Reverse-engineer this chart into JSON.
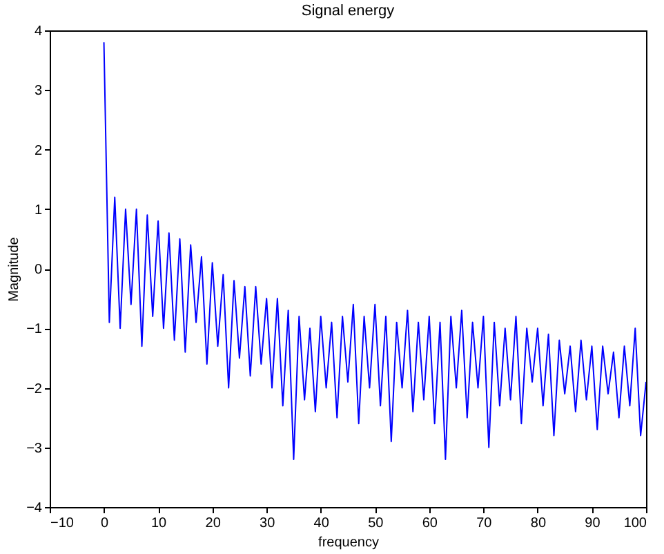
{
  "chart_data": {
    "type": "line",
    "title": "Signal energy",
    "xlabel": "frequency",
    "ylabel": "Magnitude",
    "x": [
      0,
      1,
      2,
      3,
      4,
      5,
      6,
      7,
      8,
      9,
      10,
      11,
      12,
      13,
      14,
      15,
      16,
      17,
      18,
      19,
      20,
      21,
      22,
      23,
      24,
      25,
      26,
      27,
      28,
      29,
      30,
      31,
      32,
      33,
      34,
      35,
      36,
      37,
      38,
      39,
      40,
      41,
      42,
      43,
      44,
      45,
      46,
      47,
      48,
      49,
      50,
      51,
      52,
      53,
      54,
      55,
      56,
      57,
      58,
      59,
      60,
      61,
      62,
      63,
      64,
      65,
      66,
      67,
      68,
      69,
      70,
      71,
      72,
      73,
      74,
      75,
      76,
      77,
      78,
      79,
      80,
      81,
      82,
      83,
      84,
      85,
      86,
      87,
      88,
      89,
      90,
      91,
      92,
      93,
      94,
      95,
      96,
      97,
      98,
      99,
      100
    ],
    "series": [
      {
        "color": "#0000ff",
        "values": [
          3.8,
          -0.9,
          1.2,
          -1.0,
          1.0,
          -0.6,
          1.0,
          -1.3,
          0.9,
          -0.8,
          0.8,
          -1.0,
          0.6,
          -1.2,
          0.5,
          -1.4,
          0.4,
          -0.9,
          0.2,
          -1.6,
          0.1,
          -1.3,
          -0.1,
          -2.0,
          -0.2,
          -1.5,
          -0.3,
          -1.8,
          -0.3,
          -1.6,
          -0.5,
          -2.0,
          -0.5,
          -2.3,
          -0.7,
          -3.2,
          -0.8,
          -2.2,
          -1.0,
          -2.4,
          -0.8,
          -2.0,
          -0.9,
          -2.5,
          -0.8,
          -1.9,
          -0.6,
          -2.6,
          -0.8,
          -2.0,
          -0.6,
          -2.3,
          -0.8,
          -2.9,
          -0.9,
          -2.0,
          -0.7,
          -2.4,
          -0.9,
          -2.2,
          -0.8,
          -2.6,
          -0.9,
          -3.2,
          -0.8,
          -2.0,
          -0.7,
          -2.5,
          -0.9,
          -2.0,
          -0.8,
          -3.0,
          -0.9,
          -2.3,
          -1.0,
          -2.2,
          -0.8,
          -2.6,
          -1.0,
          -1.9,
          -1.0,
          -2.3,
          -1.1,
          -2.8,
          -1.2,
          -2.1,
          -1.3,
          -2.4,
          -1.2,
          -2.2,
          -1.3,
          -2.7,
          -1.3,
          -2.1,
          -1.4,
          -2.5,
          -1.3,
          -2.3,
          -1.0,
          -2.8,
          -1.9
        ]
      }
    ],
    "xlim": [
      -10,
      100
    ],
    "xticks": [
      -10,
      0,
      10,
      20,
      30,
      40,
      50,
      60,
      70,
      80,
      90,
      100
    ],
    "ylim": [
      -4,
      4
    ],
    "yticks": [
      -4,
      -3,
      -2,
      -1,
      0,
      1,
      2,
      3,
      4
    ]
  }
}
